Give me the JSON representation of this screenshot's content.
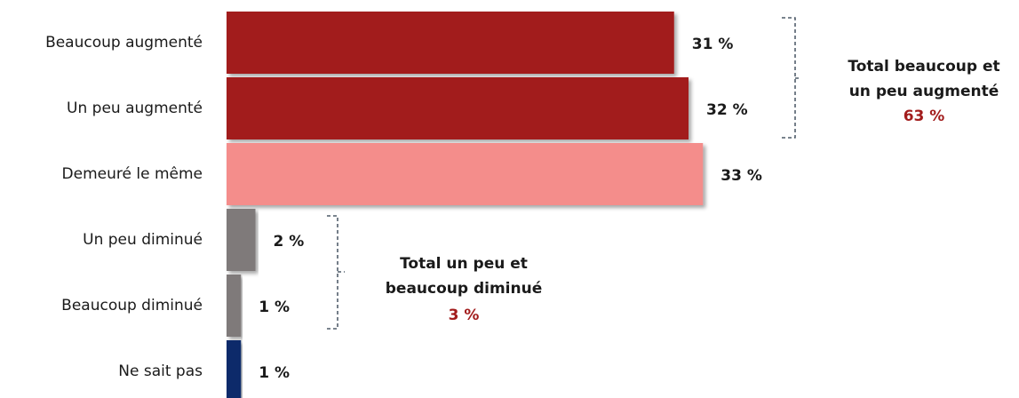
{
  "chart_data": {
    "type": "barh",
    "categories": [
      "Beaucoup augmenté",
      "Un peu augmenté",
      "Demeuré le même",
      "Un peu diminué",
      "Beaucoup diminué",
      "Ne sait pas"
    ],
    "values": [
      31,
      32,
      33,
      2,
      1,
      1
    ],
    "value_labels": [
      "31 %",
      "32 %",
      "33 %",
      "2 %",
      "1 %",
      "1 %"
    ],
    "colors": [
      "#a21c1c",
      "#a21c1c",
      "#f48d8b",
      "#7f7a7a",
      "#7f7a7a",
      "#0d2a6b"
    ],
    "annotations": [
      {
        "lines": [
          "Total beaucoup et",
          "un peu augmenté"
        ],
        "total_label": "63 %"
      },
      {
        "lines": [
          "Total un peu et",
          "beaucoup diminué"
        ],
        "total_label": "3 %"
      }
    ]
  }
}
